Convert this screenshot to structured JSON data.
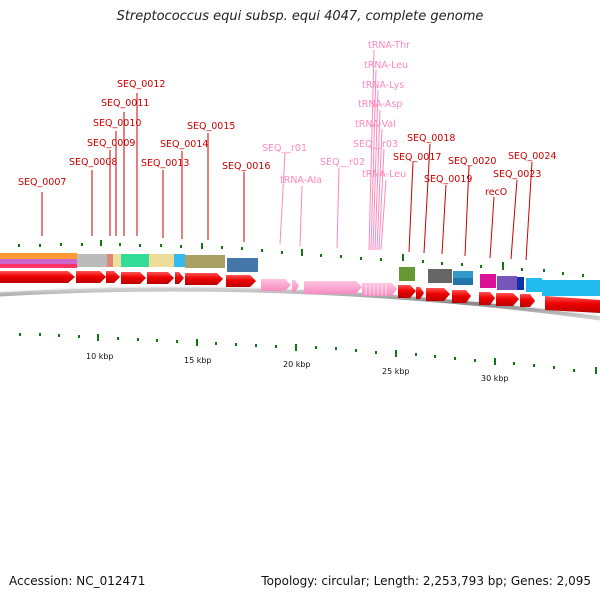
{
  "title": "Streptococcus equi subsp. equi 4047, complete genome",
  "footer": {
    "accession": "Accession: NC_012471",
    "summary": "Topology: circular; Length: 2,253,793 bp; Genes: 2,095"
  },
  "colors": {
    "gene_red": "#ee1111",
    "rna_pink": "#ff99cc",
    "label_red": "#cc0000",
    "label_pink": "#ff88bb",
    "tick_green": "#117711",
    "backbone_grey": "#999999"
  },
  "scale_labels": [
    "10 kbp",
    "15 kbp",
    "20 kbp",
    "25 kbp",
    "30 kbp"
  ],
  "gene_labels": [
    {
      "text": "SEQ_0007",
      "type": "cds"
    },
    {
      "text": "SEQ_0008",
      "type": "cds"
    },
    {
      "text": "SEQ_0009",
      "type": "cds"
    },
    {
      "text": "SEQ_0010",
      "type": "cds"
    },
    {
      "text": "SEQ_0011",
      "type": "cds"
    },
    {
      "text": "SEQ_0012",
      "type": "cds"
    },
    {
      "text": "SEQ_0013",
      "type": "cds"
    },
    {
      "text": "SEQ_0014",
      "type": "cds"
    },
    {
      "text": "SEQ_0015",
      "type": "cds"
    },
    {
      "text": "SEQ_0016",
      "type": "cds"
    },
    {
      "text": "SEQ__r01",
      "type": "rna"
    },
    {
      "text": "tRNA-Ala",
      "type": "rna"
    },
    {
      "text": "SEQ__r02",
      "type": "rna"
    },
    {
      "text": "tRNA-Thr",
      "type": "rna"
    },
    {
      "text": "tRNA-Leu",
      "type": "rna"
    },
    {
      "text": "tRNA-Lys",
      "type": "rna"
    },
    {
      "text": "tRNA-Asp",
      "type": "rna"
    },
    {
      "text": "tRNA-Val",
      "type": "rna"
    },
    {
      "text": "SEQ__r03",
      "type": "rna"
    },
    {
      "text": "tRNA-Leu",
      "type": "rna"
    },
    {
      "text": "SEQ_0017",
      "type": "cds"
    },
    {
      "text": "SEQ_0018",
      "type": "cds"
    },
    {
      "text": "SEQ_0019",
      "type": "cds"
    },
    {
      "text": "SEQ_0020",
      "type": "cds"
    },
    {
      "text": "recO",
      "type": "cds"
    },
    {
      "text": "SEQ_0023",
      "type": "cds"
    },
    {
      "text": "SEQ_0024",
      "type": "cds"
    }
  ]
}
